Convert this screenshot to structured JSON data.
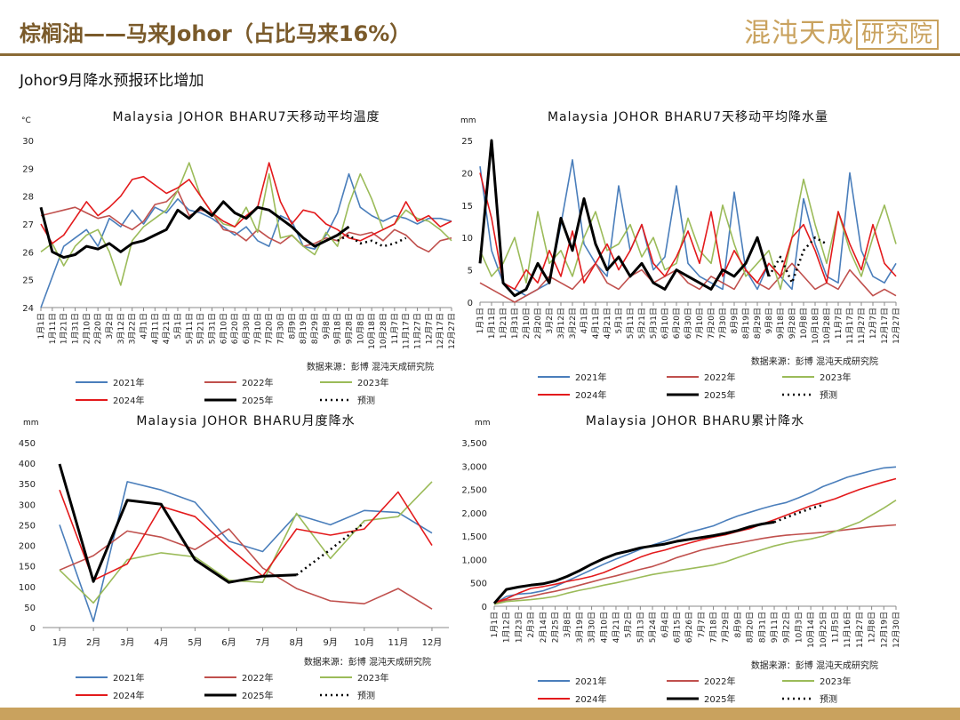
{
  "header": {
    "title": "棕榈油——马来Johor（占比马来16%）",
    "logo_text": "混沌天成",
    "logo_box": "研究院"
  },
  "subtitle": "Johor9月降水预报环比增加",
  "colors": {
    "s2021": "#4a7ebb",
    "s2022": "#c0504d",
    "s2023": "#9bbb59",
    "s2024": "#e31a1c",
    "s2025": "#000000",
    "forecast": "#000000"
  },
  "chart_data": [
    {
      "id": "c1",
      "type": "line",
      "title": "Malaysia JOHOR BHARU7天移动平均温度",
      "yunit": "°C",
      "ylim": [
        24,
        30
      ],
      "yticks": [
        "24",
        "25",
        "26",
        "27",
        "28",
        "29",
        "30"
      ],
      "x_ticks": [
        "1月1日",
        "1月11日",
        "1月21日",
        "1月31日",
        "2月10日",
        "2月20日",
        "3月2日",
        "3月12日",
        "3月22日",
        "4月1日",
        "4月11日",
        "4月21日",
        "5月1日",
        "5月11日",
        "5月21日",
        "5月31日",
        "6月10日",
        "6月20日",
        "6月30日",
        "7月10日",
        "7月20日",
        "7月30日",
        "8月9日",
        "8月19日",
        "8月29日",
        "9月8日",
        "9月18日",
        "9月28日",
        "10月8日",
        "10月18日",
        "10月28日",
        "11月7日",
        "11月17日",
        "11月27日",
        "12月7日",
        "12月17日",
        "12月27日"
      ],
      "source": "数据来源：彭博   混沌天成研究院",
      "legend": [
        "2021年",
        "2022年",
        "2023年",
        "2024年",
        "2025年",
        "预测"
      ],
      "series": [
        {
          "key": "s2021",
          "name": "2021年",
          "values": [
            24.0,
            25.1,
            26.2,
            26.5,
            26.8,
            26.2,
            27.2,
            26.9,
            27.5,
            27.0,
            27.6,
            27.4,
            27.9,
            27.5,
            27.4,
            27.2,
            26.9,
            26.6,
            26.9,
            26.4,
            26.2,
            27.3,
            27.1,
            26.2,
            26.1,
            26.6,
            27.4,
            28.8,
            27.6,
            27.3,
            27.1,
            27.3,
            27.2,
            27.0,
            27.2,
            27.2,
            27.1
          ]
        },
        {
          "key": "s2022",
          "name": "2022年",
          "values": [
            27.3,
            27.4,
            27.5,
            27.6,
            27.4,
            27.2,
            27.3,
            27.0,
            26.8,
            27.1,
            27.7,
            27.8,
            28.2,
            27.3,
            27.5,
            27.4,
            26.8,
            26.7,
            26.4,
            26.8,
            26.5,
            26.3,
            26.6,
            26.2,
            26.3,
            26.5,
            26.4,
            26.7,
            26.6,
            26.7,
            26.4,
            26.8,
            26.6,
            26.2,
            26.0,
            26.4,
            26.5
          ]
        },
        {
          "key": "s2023",
          "name": "2023年",
          "values": [
            26.0,
            26.3,
            25.5,
            26.2,
            26.6,
            26.8,
            26.0,
            24.8,
            26.4,
            26.9,
            27.2,
            27.5,
            28.2,
            29.2,
            28.0,
            27.4,
            27.0,
            26.9,
            27.6,
            26.7,
            28.8,
            26.5,
            26.6,
            26.2,
            25.9,
            26.7,
            26.2,
            27.7,
            28.8,
            27.9,
            26.8,
            27.0,
            27.5,
            27.2,
            27.1,
            26.8,
            26.4
          ]
        },
        {
          "key": "s2024",
          "name": "2024年",
          "values": [
            27.0,
            26.3,
            26.6,
            27.2,
            27.8,
            27.3,
            27.6,
            28.0,
            28.6,
            28.7,
            28.4,
            28.1,
            28.3,
            28.6,
            28.0,
            27.4,
            27.1,
            26.9,
            27.3,
            27.6,
            29.2,
            27.8,
            27.0,
            27.5,
            27.4,
            27.0,
            26.8,
            26.5,
            26.4,
            26.6,
            26.8,
            27.0,
            27.8,
            27.1,
            27.3,
            26.9,
            27.1
          ]
        },
        {
          "key": "s2025",
          "name": "2025年",
          "values": [
            27.6,
            26.0,
            25.8,
            25.9,
            26.2,
            26.1,
            26.3,
            26.0,
            26.3,
            26.4,
            26.6,
            26.8,
            27.5,
            27.2,
            27.6,
            27.3,
            27.8,
            27.4,
            27.2,
            27.6,
            27.5,
            27.2,
            26.9,
            26.5,
            26.2,
            26.4,
            26.6,
            26.9
          ]
        },
        {
          "key": "forecast",
          "name": "预测",
          "start": 26,
          "values": [
            26.4,
            26.6,
            26.3,
            26.4,
            26.2,
            26.3,
            26.5
          ]
        }
      ]
    },
    {
      "id": "c2",
      "type": "line",
      "title": "Malaysia JOHOR BHARU7天移动平均降水量",
      "yunit": "mm",
      "ylim": [
        0,
        25
      ],
      "yticks": [
        "0",
        "5",
        "10",
        "15",
        "20",
        "25"
      ],
      "x_ticks": [
        "1月1日",
        "1月11日",
        "1月21日",
        "1月31日",
        "2月10日",
        "2月20日",
        "3月2日",
        "3月12日",
        "3月22日",
        "4月1日",
        "4月11日",
        "4月21日",
        "5月1日",
        "5月11日",
        "5月21日",
        "5月31日",
        "6月10日",
        "6月20日",
        "6月30日",
        "7月10日",
        "7月20日",
        "7月30日",
        "8月9日",
        "8月19日",
        "8月29日",
        "9月8日",
        "9月18日",
        "9月28日",
        "10月8日",
        "10月18日",
        "10月28日",
        "11月7日",
        "11月17日",
        "11月27日",
        "12月7日",
        "12月17日",
        "12月27日"
      ],
      "source": "数据来源：彭博   混沌天成研究院",
      "legend": [
        "2021年",
        "2022年",
        "2023年",
        "2024年",
        "2025年",
        "预测"
      ],
      "series": [
        {
          "key": "s2021",
          "name": "2021年",
          "values": [
            21,
            8,
            3,
            2,
            1,
            2,
            3,
            12,
            22,
            9,
            6,
            4,
            18,
            8,
            12,
            5,
            7,
            18,
            6,
            4,
            3,
            2,
            17,
            5,
            2,
            6,
            4,
            2,
            16,
            9,
            4,
            3,
            20,
            8,
            4,
            3,
            6
          ]
        },
        {
          "key": "s2022",
          "name": "2022年",
          "values": [
            3,
            2,
            1,
            0,
            1,
            2,
            4,
            3,
            2,
            4,
            6,
            3,
            2,
            4,
            5,
            3,
            4,
            5,
            3,
            2,
            4,
            3,
            2,
            5,
            3,
            2,
            4,
            6,
            4,
            2,
            3,
            2,
            5,
            3,
            1,
            2,
            1
          ]
        },
        {
          "key": "s2023",
          "name": "2023年",
          "values": [
            8,
            4,
            6,
            10,
            3,
            14,
            6,
            8,
            4,
            10,
            14,
            8,
            9,
            12,
            7,
            10,
            5,
            6,
            13,
            8,
            6,
            15,
            9,
            4,
            6,
            8,
            2,
            10,
            19,
            12,
            6,
            14,
            8,
            4,
            10,
            15,
            9
          ]
        },
        {
          "key": "s2024",
          "name": "2024年",
          "values": [
            20,
            13,
            3,
            2,
            5,
            3,
            8,
            4,
            11,
            3,
            6,
            9,
            5,
            8,
            12,
            6,
            4,
            7,
            11,
            6,
            14,
            4,
            8,
            5,
            3,
            6,
            4,
            10,
            12,
            8,
            3,
            14,
            9,
            5,
            12,
            6,
            4
          ]
        },
        {
          "key": "s2025",
          "name": "2025年",
          "values": [
            6,
            25,
            3,
            1,
            2,
            6,
            3,
            13,
            8,
            16,
            9,
            5,
            7,
            4,
            6,
            3,
            2,
            5,
            4,
            3,
            2,
            5,
            4,
            6,
            10,
            4
          ]
        },
        {
          "key": "forecast",
          "name": "预测",
          "start": 25,
          "values": [
            4,
            7,
            3,
            8,
            10,
            9
          ]
        }
      ]
    },
    {
      "id": "c3",
      "type": "line",
      "title": "Malaysia JOHOR BHARU月度降水",
      "yunit": "mm",
      "ylim": [
        0,
        450
      ],
      "yticks": [
        "0",
        "50",
        "100",
        "150",
        "200",
        "250",
        "300",
        "350",
        "400",
        "450"
      ],
      "x_ticks": [
        "1月",
        "2月",
        "3月",
        "4月",
        "5月",
        "6月",
        "7月",
        "8月",
        "9月",
        "10月",
        "11月",
        "12月"
      ],
      "source": "数据来源：彭博   混沌天成研究院",
      "legend": [
        "2021年",
        "2022年",
        "2023年",
        "2024年",
        "2025年",
        "预测"
      ],
      "series": [
        {
          "key": "s2021",
          "name": "2021年",
          "values": [
            250,
            15,
            355,
            335,
            305,
            210,
            185,
            275,
            250,
            285,
            280,
            230
          ]
        },
        {
          "key": "s2022",
          "name": "2022年",
          "values": [
            140,
            175,
            235,
            220,
            190,
            240,
            145,
            95,
            65,
            58,
            95,
            45
          ]
        },
        {
          "key": "s2023",
          "name": "2023年",
          "values": [
            140,
            60,
            165,
            182,
            172,
            115,
            110,
            278,
            168,
            260,
            270,
            355
          ]
        },
        {
          "key": "s2024",
          "name": "2024年",
          "values": [
            335,
            115,
            155,
            295,
            270,
            195,
            125,
            240,
            225,
            240,
            330,
            200
          ]
        },
        {
          "key": "s2025",
          "name": "2025年",
          "values": [
            398,
            112,
            310,
            300,
            165,
            110,
            125,
            128
          ]
        },
        {
          "key": "forecast",
          "name": "预测",
          "start": 7,
          "values": [
            128,
            190,
            255
          ]
        }
      ]
    },
    {
      "id": "c4",
      "type": "line",
      "title": "Malaysia JOHOR BHARU累计降水",
      "yunit": "mm",
      "ylim": [
        0,
        3500
      ],
      "yticks": [
        "0",
        "500",
        "1,000",
        "1,500",
        "2,000",
        "2,500",
        "3,000",
        "3,500"
      ],
      "x_ticks": [
        "1月1日",
        "1月12日",
        "1月23日",
        "2月3日",
        "2月14日",
        "2月25日",
        "3月8日",
        "3月19日",
        "3月30日",
        "4月10日",
        "4月21日",
        "5月2日",
        "5月13日",
        "5月24日",
        "6月4日",
        "6月15日",
        "6月26日",
        "7月7日",
        "7月18日",
        "7月29日",
        "8月9日",
        "8月20日",
        "8月31日",
        "9月11日",
        "9月22日",
        "10月3日",
        "10月14日",
        "10月25日",
        "11月5日",
        "11月16日",
        "11月27日",
        "12月8日",
        "12月19日",
        "12月30日"
      ],
      "source": "数据来源：彭博   混沌天成研究院",
      "legend": [
        "2021年",
        "2022年",
        "2023年",
        "2024年",
        "2025年",
        "预测"
      ],
      "series": [
        {
          "key": "s2021",
          "name": "2021年",
          "values": [
            50,
            210,
            260,
            280,
            330,
            420,
            540,
            660,
            780,
            900,
            1010,
            1110,
            1220,
            1310,
            1390,
            1480,
            1580,
            1650,
            1720,
            1830,
            1930,
            2010,
            2090,
            2160,
            2220,
            2320,
            2430,
            2560,
            2660,
            2760,
            2830,
            2900,
            2960,
            2980
          ]
        },
        {
          "key": "s2022",
          "name": "2022年",
          "values": [
            60,
            130,
            160,
            210,
            270,
            320,
            380,
            450,
            520,
            590,
            650,
            720,
            790,
            850,
            940,
            1040,
            1120,
            1200,
            1260,
            1310,
            1350,
            1400,
            1450,
            1490,
            1520,
            1540,
            1560,
            1580,
            1610,
            1640,
            1670,
            1700,
            1720,
            1740
          ]
        },
        {
          "key": "s2023",
          "name": "2023年",
          "values": [
            40,
            100,
            120,
            140,
            170,
            210,
            280,
            340,
            390,
            450,
            500,
            560,
            620,
            680,
            720,
            760,
            800,
            840,
            880,
            950,
            1040,
            1130,
            1210,
            1290,
            1350,
            1400,
            1440,
            1500,
            1600,
            1700,
            1800,
            1950,
            2100,
            2270
          ]
        },
        {
          "key": "s2024",
          "name": "2024年",
          "values": [
            80,
            160,
            280,
            380,
            420,
            470,
            530,
            580,
            640,
            720,
            830,
            940,
            1050,
            1140,
            1200,
            1280,
            1350,
            1420,
            1480,
            1530,
            1600,
            1660,
            1760,
            1850,
            1950,
            2050,
            2150,
            2220,
            2300,
            2400,
            2500,
            2580,
            2660,
            2730
          ]
        },
        {
          "key": "s2025",
          "name": "2025年",
          "values": [
            60,
            360,
            410,
            450,
            480,
            540,
            640,
            760,
            900,
            1020,
            1120,
            1180,
            1250,
            1290,
            1330,
            1390,
            1430,
            1470,
            1510,
            1560,
            1620,
            1700,
            1760,
            1800
          ]
        },
        {
          "key": "forecast",
          "name": "预测",
          "start": 23,
          "values": [
            1800,
            1900,
            2000,
            2090,
            2170
          ]
        }
      ]
    }
  ]
}
